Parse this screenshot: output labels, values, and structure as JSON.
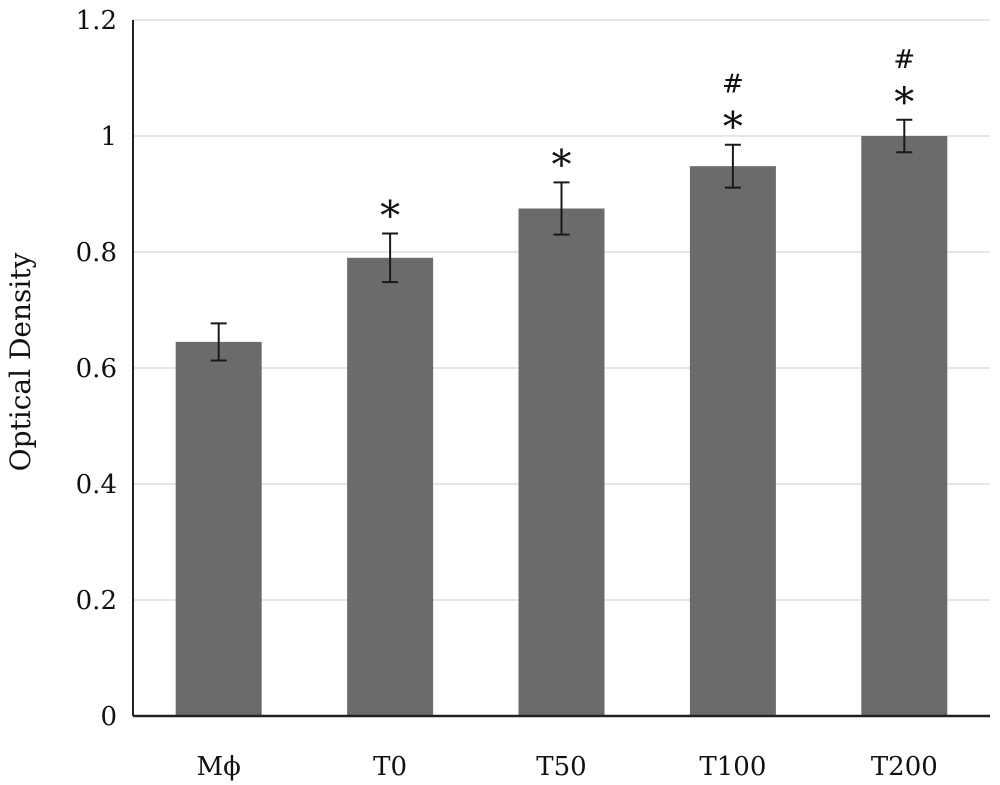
{
  "chart_data": {
    "type": "bar",
    "title": "",
    "xlabel": "",
    "ylabel": "Optical Density",
    "ylim": [
      0,
      1.2
    ],
    "yticks": [
      "0",
      "0.2",
      "0.4",
      "0.6",
      "0.8",
      "1",
      "1.2"
    ],
    "grid": true,
    "legend": "none",
    "categories": [
      "Mϕ",
      "T0",
      "T50",
      "T100",
      "T200"
    ],
    "values": [
      0.645,
      0.79,
      0.875,
      0.948,
      1.0
    ],
    "error": [
      0.032,
      0.042,
      0.045,
      0.037,
      0.028
    ],
    "annotations": [
      [],
      [
        "*"
      ],
      [
        "*"
      ],
      [
        "*",
        "#"
      ],
      [
        "*",
        "#"
      ]
    ],
    "colors": {
      "bar": "#6b6b6b",
      "error": "#1a1a1a",
      "axis": "#222222",
      "grid": "#dddddd"
    }
  }
}
